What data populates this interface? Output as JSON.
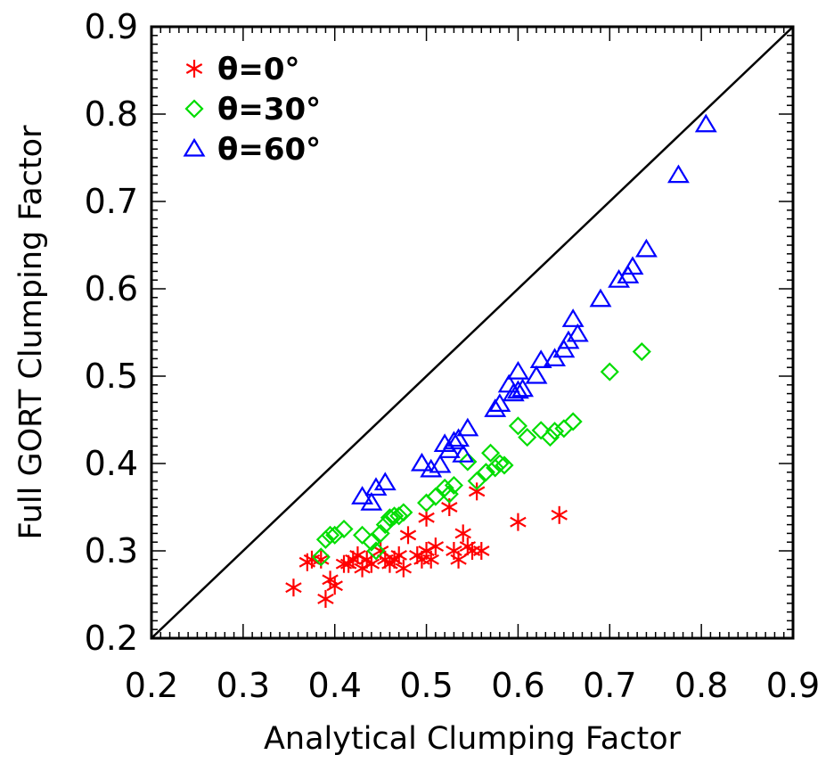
{
  "chart_data": {
    "type": "scatter",
    "xlabel": "Analytical Clumping Factor",
    "ylabel": "Full GORT Clumping Factor",
    "xlim": [
      0.2,
      0.9
    ],
    "ylim": [
      0.2,
      0.9
    ],
    "xticks": [
      "0.2",
      "0.3",
      "0.4",
      "0.5",
      "0.6",
      "0.7",
      "0.8",
      "0.9"
    ],
    "yticks": [
      "0.2",
      "0.3",
      "0.4",
      "0.5",
      "0.6",
      "0.7",
      "0.8",
      "0.9"
    ],
    "reference_line": {
      "from": [
        0.2,
        0.2
      ],
      "to": [
        0.9,
        0.9
      ],
      "color": "#000000"
    },
    "legend_position": "top-left",
    "series": [
      {
        "name": "θ=0°",
        "marker": "asterisk",
        "color": "#ff0000",
        "points": [
          [
            0.355,
            0.258
          ],
          [
            0.37,
            0.287
          ],
          [
            0.375,
            0.29
          ],
          [
            0.385,
            0.29
          ],
          [
            0.39,
            0.245
          ],
          [
            0.395,
            0.267
          ],
          [
            0.4,
            0.26
          ],
          [
            0.41,
            0.285
          ],
          [
            0.415,
            0.285
          ],
          [
            0.42,
            0.29
          ],
          [
            0.425,
            0.295
          ],
          [
            0.43,
            0.28
          ],
          [
            0.435,
            0.29
          ],
          [
            0.44,
            0.285
          ],
          [
            0.45,
            0.3
          ],
          [
            0.455,
            0.29
          ],
          [
            0.46,
            0.285
          ],
          [
            0.465,
            0.29
          ],
          [
            0.47,
            0.295
          ],
          [
            0.475,
            0.28
          ],
          [
            0.48,
            0.318
          ],
          [
            0.49,
            0.295
          ],
          [
            0.495,
            0.29
          ],
          [
            0.5,
            0.3
          ],
          [
            0.5,
            0.338
          ],
          [
            0.505,
            0.29
          ],
          [
            0.51,
            0.305
          ],
          [
            0.525,
            0.35
          ],
          [
            0.53,
            0.3
          ],
          [
            0.535,
            0.29
          ],
          [
            0.54,
            0.32
          ],
          [
            0.545,
            0.305
          ],
          [
            0.55,
            0.3
          ],
          [
            0.555,
            0.368
          ],
          [
            0.56,
            0.3
          ],
          [
            0.6,
            0.333
          ],
          [
            0.645,
            0.341
          ]
        ]
      },
      {
        "name": "θ=30°",
        "marker": "diamond",
        "color": "#00dd00",
        "points": [
          [
            0.385,
            0.293
          ],
          [
            0.39,
            0.313
          ],
          [
            0.395,
            0.318
          ],
          [
            0.4,
            0.318
          ],
          [
            0.41,
            0.325
          ],
          [
            0.43,
            0.318
          ],
          [
            0.44,
            0.31
          ],
          [
            0.445,
            0.3
          ],
          [
            0.45,
            0.32
          ],
          [
            0.455,
            0.33
          ],
          [
            0.46,
            0.338
          ],
          [
            0.465,
            0.34
          ],
          [
            0.47,
            0.34
          ],
          [
            0.475,
            0.344
          ],
          [
            0.5,
            0.355
          ],
          [
            0.51,
            0.362
          ],
          [
            0.52,
            0.372
          ],
          [
            0.525,
            0.365
          ],
          [
            0.53,
            0.375
          ],
          [
            0.545,
            0.402
          ],
          [
            0.555,
            0.38
          ],
          [
            0.565,
            0.39
          ],
          [
            0.57,
            0.412
          ],
          [
            0.575,
            0.395
          ],
          [
            0.58,
            0.4
          ],
          [
            0.585,
            0.398
          ],
          [
            0.6,
            0.443
          ],
          [
            0.61,
            0.43
          ],
          [
            0.625,
            0.438
          ],
          [
            0.635,
            0.43
          ],
          [
            0.64,
            0.437
          ],
          [
            0.65,
            0.44
          ],
          [
            0.66,
            0.448
          ],
          [
            0.7,
            0.505
          ],
          [
            0.735,
            0.528
          ]
        ]
      },
      {
        "name": "θ=60°",
        "marker": "triangle",
        "color": "#0000ff",
        "points": [
          [
            0.43,
            0.362
          ],
          [
            0.44,
            0.355
          ],
          [
            0.445,
            0.372
          ],
          [
            0.455,
            0.378
          ],
          [
            0.495,
            0.4
          ],
          [
            0.505,
            0.393
          ],
          [
            0.515,
            0.398
          ],
          [
            0.52,
            0.422
          ],
          [
            0.525,
            0.415
          ],
          [
            0.53,
            0.425
          ],
          [
            0.535,
            0.428
          ],
          [
            0.54,
            0.41
          ],
          [
            0.545,
            0.44
          ],
          [
            0.575,
            0.462
          ],
          [
            0.58,
            0.468
          ],
          [
            0.59,
            0.49
          ],
          [
            0.595,
            0.48
          ],
          [
            0.6,
            0.505
          ],
          [
            0.6,
            0.483
          ],
          [
            0.605,
            0.485
          ],
          [
            0.62,
            0.5
          ],
          [
            0.625,
            0.518
          ],
          [
            0.64,
            0.52
          ],
          [
            0.65,
            0.53
          ],
          [
            0.655,
            0.54
          ],
          [
            0.66,
            0.565
          ],
          [
            0.665,
            0.548
          ],
          [
            0.69,
            0.588
          ],
          [
            0.71,
            0.61
          ],
          [
            0.72,
            0.615
          ],
          [
            0.725,
            0.625
          ],
          [
            0.74,
            0.645
          ],
          [
            0.775,
            0.73
          ],
          [
            0.805,
            0.788
          ]
        ]
      }
    ]
  }
}
